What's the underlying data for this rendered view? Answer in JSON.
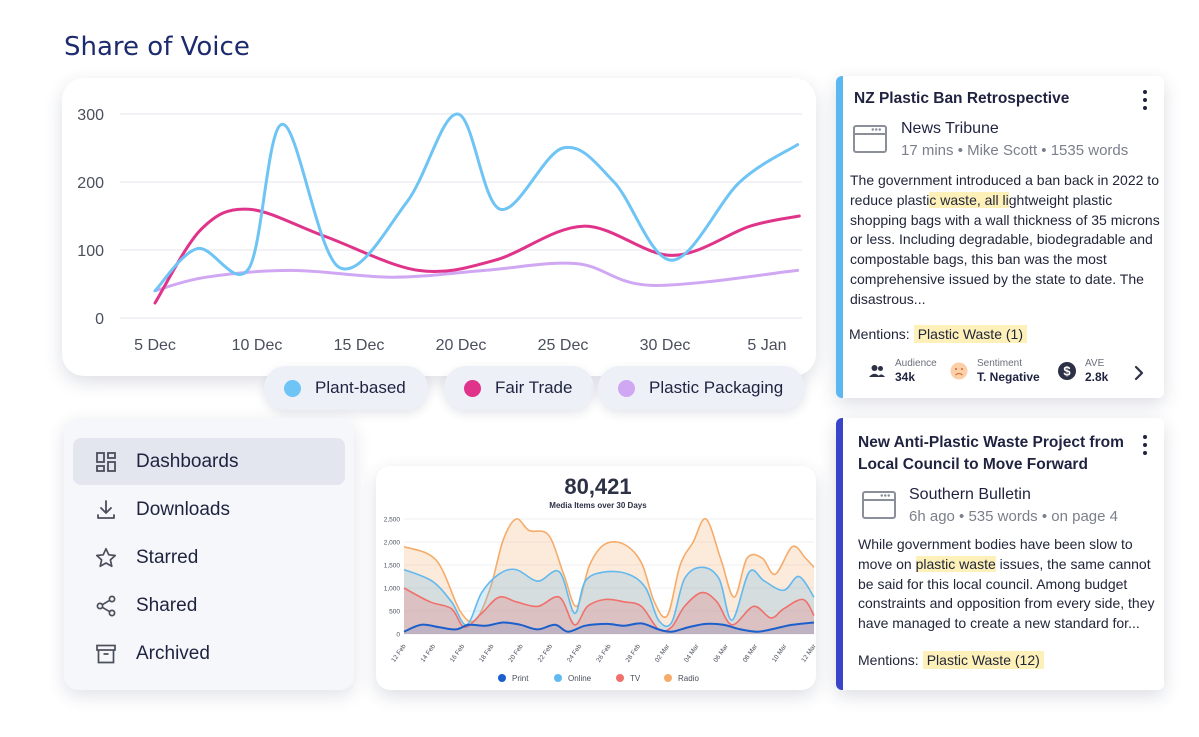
{
  "page": {
    "title": "Share of Voice"
  },
  "colors": {
    "plant": "#6ec4f4",
    "fair": "#e0338a",
    "plastic": "#cfa7f2",
    "print": "#1c5fcc",
    "online": "#62b9ef",
    "tv": "#f0706b",
    "radio": "#f5ac6b"
  },
  "chart_data": [
    {
      "type": "line",
      "title": "",
      "x": [
        "5 Dec",
        "10 Dec",
        "15 Dec",
        "20 Dec",
        "25 Dec",
        "30 Dec",
        "5 Jan"
      ],
      "ylim": [
        0,
        300
      ],
      "yticks": [
        0,
        100,
        200,
        300
      ],
      "grid": true,
      "legend_position": "bottom",
      "series": [
        {
          "name": "Plant-based",
          "color": "plant",
          "points": [
            [
              0,
              40
            ],
            [
              1.25,
              102
            ],
            [
              2.75,
              72
            ],
            [
              3.75,
              285
            ],
            [
              5.4,
              75
            ],
            [
              7.4,
              170
            ],
            [
              8.9,
              300
            ],
            [
              10.15,
              160
            ],
            [
              12,
              250
            ],
            [
              13.5,
              200
            ],
            [
              15.2,
              85
            ],
            [
              17.2,
              200
            ],
            [
              18.9,
              255
            ]
          ]
        },
        {
          "name": "Fair Trade",
          "color": "fair",
          "points": [
            [
              0,
              22
            ],
            [
              1.35,
              130
            ],
            [
              2.75,
              160
            ],
            [
              5,
              120
            ],
            [
              7.75,
              70
            ],
            [
              10,
              85
            ],
            [
              12.6,
              135
            ],
            [
              15.2,
              92
            ],
            [
              17.5,
              135
            ],
            [
              18.95,
              150
            ]
          ]
        },
        {
          "name": "Plastic Packaging",
          "color": "plastic",
          "points": [
            [
              0,
              40
            ],
            [
              1.5,
              60
            ],
            [
              4,
              70
            ],
            [
              7,
              60
            ],
            [
              9.7,
              70
            ],
            [
              12.4,
              80
            ],
            [
              14.6,
              48
            ],
            [
              18.9,
              70
            ]
          ]
        }
      ]
    },
    {
      "type": "area",
      "title": "80,421",
      "subtitle": "Media Items over 30 Days",
      "ylim": [
        0,
        2500
      ],
      "yticks": [
        "0",
        "500",
        "1,000",
        "1,500",
        "2,000",
        "2,500"
      ],
      "x": [
        "12 Feb",
        "14 Feb",
        "16 Feb",
        "18 Feb",
        "20 Feb",
        "22 Feb",
        "24 Feb",
        "26 Feb",
        "28 Feb",
        "02 Mar",
        "04 Mar",
        "06 Mar",
        "08 Mar",
        "10 Mar",
        "12 Mar"
      ],
      "series": [
        {
          "name": "Radio",
          "color": "radio",
          "points": [
            [
              0,
              1900
            ],
            [
              1.5,
              1600
            ],
            [
              2.6,
              500
            ],
            [
              3.3,
              300
            ],
            [
              4,
              1000
            ],
            [
              4.6,
              2050
            ],
            [
              5.2,
              2500
            ],
            [
              5.8,
              2250
            ],
            [
              6.7,
              2150
            ],
            [
              7.4,
              1300
            ],
            [
              8,
              600
            ],
            [
              8.6,
              1500
            ],
            [
              9.3,
              1950
            ],
            [
              10.2,
              1950
            ],
            [
              11,
              1550
            ],
            [
              11.6,
              700
            ],
            [
              12.2,
              400
            ],
            [
              12.8,
              1500
            ],
            [
              13.4,
              2000
            ],
            [
              14,
              2500
            ],
            [
              14.7,
              1600
            ],
            [
              15.3,
              800
            ],
            [
              15.9,
              1650
            ],
            [
              16.6,
              1650
            ],
            [
              17.2,
              1300
            ],
            [
              18,
              1900
            ],
            [
              18.6,
              1650
            ],
            [
              19,
              1450
            ]
          ]
        },
        {
          "name": "Online",
          "color": "online",
          "points": [
            [
              0,
              1400
            ],
            [
              1.3,
              1150
            ],
            [
              2.2,
              700
            ],
            [
              2.9,
              200
            ],
            [
              3.6,
              900
            ],
            [
              4.4,
              1300
            ],
            [
              5.2,
              1400
            ],
            [
              6.2,
              1150
            ],
            [
              7.2,
              1350
            ],
            [
              7.9,
              450
            ],
            [
              8.4,
              1150
            ],
            [
              9.3,
              1350
            ],
            [
              10.4,
              1300
            ],
            [
              11.2,
              1000
            ],
            [
              11.8,
              300
            ],
            [
              12.4,
              250
            ],
            [
              13,
              1200
            ],
            [
              13.8,
              1450
            ],
            [
              14.6,
              1200
            ],
            [
              15.2,
              300
            ],
            [
              16,
              1350
            ],
            [
              16.7,
              1150
            ],
            [
              17.6,
              950
            ],
            [
              18.3,
              1250
            ],
            [
              19,
              800
            ]
          ]
        },
        {
          "name": "TV",
          "color": "tv",
          "points": [
            [
              0,
              1000
            ],
            [
              1.2,
              700
            ],
            [
              2.2,
              550
            ],
            [
              2.8,
              150
            ],
            [
              3.6,
              450
            ],
            [
              4.4,
              800
            ],
            [
              5.2,
              700
            ],
            [
              6.2,
              600
            ],
            [
              7.2,
              800
            ],
            [
              7.9,
              200
            ],
            [
              8.5,
              600
            ],
            [
              9.3,
              750
            ],
            [
              10.2,
              700
            ],
            [
              11,
              600
            ],
            [
              11.8,
              100
            ],
            [
              12.4,
              150
            ],
            [
              13,
              600
            ],
            [
              13.8,
              900
            ],
            [
              14.5,
              700
            ],
            [
              15.2,
              200
            ],
            [
              16.2,
              600
            ],
            [
              17,
              350
            ],
            [
              17.6,
              550
            ],
            [
              18.5,
              750
            ],
            [
              19,
              400
            ]
          ]
        },
        {
          "name": "Print",
          "color": "print",
          "points": [
            [
              0,
              50
            ],
            [
              0.8,
              200
            ],
            [
              1.6,
              150
            ],
            [
              2.4,
              100
            ],
            [
              3,
              200
            ],
            [
              3.8,
              180
            ],
            [
              4.6,
              250
            ],
            [
              5.4,
              200
            ],
            [
              6.2,
              100
            ],
            [
              7,
              200
            ],
            [
              7.6,
              50
            ],
            [
              8.4,
              180
            ],
            [
              9.4,
              220
            ],
            [
              10.2,
              180
            ],
            [
              11,
              230
            ],
            [
              11.8,
              100
            ],
            [
              12.4,
              50
            ],
            [
              13.2,
              150
            ],
            [
              14,
              220
            ],
            [
              14.8,
              200
            ],
            [
              15.6,
              100
            ],
            [
              16.4,
              50
            ],
            [
              17.2,
              120
            ],
            [
              18,
              200
            ],
            [
              19,
              250
            ]
          ]
        }
      ]
    }
  ],
  "legend": {
    "items": [
      {
        "label": "Plant-based",
        "color": "#6ec4f4"
      },
      {
        "label": "Fair Trade",
        "color": "#e0338a"
      },
      {
        "label": "Plastic Packaging",
        "color": "#cfa7f2"
      }
    ]
  },
  "nav": {
    "items": [
      {
        "label": "Dashboards",
        "icon": "dashboard-icon"
      },
      {
        "label": "Downloads",
        "icon": "download-icon"
      },
      {
        "label": "Starred",
        "icon": "star-icon"
      },
      {
        "label": "Shared",
        "icon": "share-icon"
      },
      {
        "label": "Archived",
        "icon": "archive-icon"
      }
    ]
  },
  "media_legend": {
    "items": [
      "Print",
      "Online",
      "TV",
      "Radio"
    ]
  },
  "articles": [
    {
      "title": "NZ Plastic Ban Retrospective",
      "source": "News Tribune",
      "meta": "17 mins • Mike Scott • 1535 words",
      "body_pre": "The government introduced a ban back in 2022 to reduce plasti",
      "body_hl": "c waste, all li",
      "body_post": "ghtweight plastic shopping bags with a wall thickness of 35 microns or less. Including degradable, biodegradable and compostable bags, this ban was the most comprehensive issued by the state to date. The disastrous...",
      "mentions_label": "Mentions:",
      "mentions_tag": "Plastic Waste (1)",
      "stats": {
        "audience_label": "Audience",
        "audience_value": "34k",
        "sentiment_label": "Sentiment",
        "sentiment_value": "T. Negative",
        "ave_label": "AVE",
        "ave_value": "2.8k"
      }
    },
    {
      "title": "New Anti-Plastic Waste Project from Local Council to Move Forward",
      "source": "Southern Bulletin",
      "meta": "6h ago • 535 words • on page 4",
      "body_pre": "While government bodies have been slow to move on ",
      "body_hl": "plastic waste",
      "body_post": " issues, the same cannot be said for this local council. Among budget constraints and opposition from every side, they have managed to create a new standard for...",
      "mentions_label": "Mentions:",
      "mentions_tag": "Plastic Waste (12)"
    }
  ]
}
